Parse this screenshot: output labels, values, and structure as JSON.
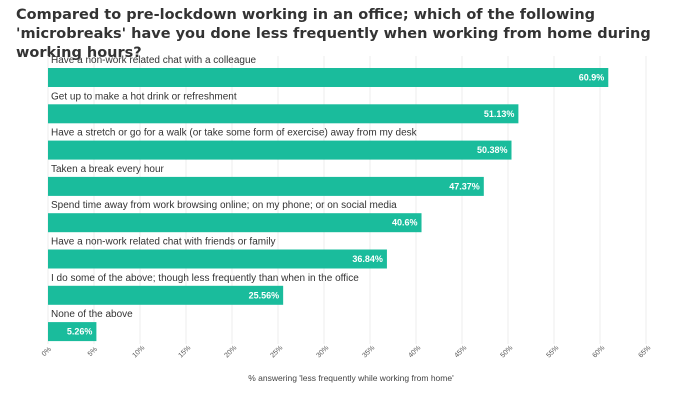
{
  "chart_data": {
    "type": "bar",
    "orientation": "horizontal",
    "title": "Compared to pre-lockdown working in an office; which of the following 'microbreaks' have you done less frequently when working from home during working hours?",
    "categories": [
      "Have a non-work related chat with a colleague",
      "Get up to make a hot drink or refreshment",
      "Have a stretch or go for a walk (or take some form of exercise) away from my desk",
      "Taken a break every hour",
      "Spend time away from work browsing online; on my phone; or on social media",
      "Have a non-work related chat with friends or family",
      "I do some of the above; though less frequently than when in the office",
      "None of the above"
    ],
    "values": [
      60.9,
      51.13,
      50.38,
      47.37,
      40.6,
      36.84,
      25.56,
      5.26
    ],
    "value_labels": [
      "60.9%",
      "51.13%",
      "50.38%",
      "47.37%",
      "40.6%",
      "36.84%",
      "25.56%",
      "5.26%"
    ],
    "xlabel": "% answering 'less frequently while working from home'",
    "xlim": [
      0,
      65
    ],
    "xticks": [
      0,
      5,
      10,
      15,
      20,
      25,
      30,
      35,
      40,
      45,
      50,
      55,
      60,
      65
    ],
    "xtick_labels": [
      "0%",
      "5%",
      "10%",
      "15%",
      "20%",
      "25%",
      "30%",
      "35%",
      "40%",
      "45%",
      "50%",
      "55%",
      "60%",
      "65%"
    ],
    "grid": true,
    "legend": "none",
    "bar_color": "#1abc9c"
  }
}
